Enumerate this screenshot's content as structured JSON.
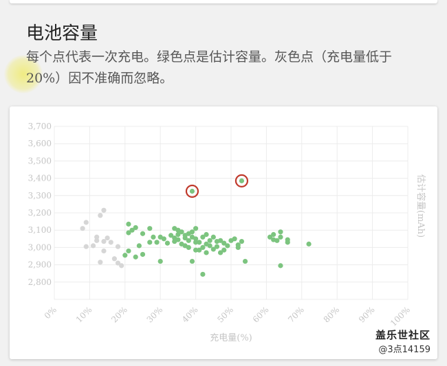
{
  "section": {
    "title": "电池容量",
    "description": "每个点代表一次充电。绿色点是估计容量。灰色点（充电量低于20%）因不准确而忽略。"
  },
  "watermark": {
    "brand": "盖乐世社区",
    "user": "@3点14159"
  },
  "colors": {
    "green": "#7cc47f",
    "gray": "#d6d6d6",
    "highlight_ring": "#c0392b",
    "axis_text": "#c4c4c4"
  },
  "chart_data": {
    "type": "scatter",
    "xlabel": "充电量(%)",
    "ylabel": "估计容量(mAh)",
    "xlim": [
      0,
      100
    ],
    "ylim": [
      2700,
      3700
    ],
    "x_ticks": [
      "0%",
      "10%",
      "20%",
      "30%",
      "40%",
      "50%",
      "60%",
      "70%",
      "80%",
      "90%",
      "100%"
    ],
    "y_ticks": [
      "2,800",
      "2,900",
      "3,000",
      "3,100",
      "3,200",
      "3,300",
      "3,400",
      "3,500",
      "3,600",
      "3,700"
    ],
    "grid": true,
    "series": [
      {
        "points": [
          [
            8,
            3110
          ],
          [
            9,
            3145
          ],
          [
            9,
            3005
          ],
          [
            12,
            3060
          ],
          [
            12,
            3040
          ],
          [
            13,
            3185
          ],
          [
            13,
            2915
          ],
          [
            14,
            3215
          ],
          [
            14,
            3035
          ],
          [
            14,
            2980
          ],
          [
            15,
            3055
          ],
          [
            17,
            2935
          ],
          [
            18,
            3005
          ],
          [
            18,
            2910
          ],
          [
            19,
            2895
          ],
          [
            16,
            3030
          ],
          [
            11,
            3010
          ]
        ]
      },
      {
        "points": [
          [
            20,
            2955
          ],
          [
            21,
            2980
          ],
          [
            21,
            3135
          ],
          [
            21,
            3085
          ],
          [
            22,
            3100
          ],
          [
            23,
            3115
          ],
          [
            23,
            2945
          ],
          [
            24,
            3010
          ],
          [
            25,
            3080
          ],
          [
            25,
            2960
          ],
          [
            27,
            3110
          ],
          [
            27,
            3030
          ],
          [
            28,
            3060
          ],
          [
            29,
            3030
          ],
          [
            30,
            3060
          ],
          [
            30,
            2920
          ],
          [
            31,
            3050
          ],
          [
            32,
            3025
          ],
          [
            33,
            3070
          ],
          [
            34,
            3055
          ],
          [
            34,
            3110
          ],
          [
            34,
            3035
          ],
          [
            35,
            3075
          ],
          [
            35,
            3045
          ],
          [
            35,
            3100
          ],
          [
            36,
            3020
          ],
          [
            36,
            3090
          ],
          [
            37,
            3055
          ],
          [
            37,
            3070
          ],
          [
            37,
            3010
          ],
          [
            38,
            3080
          ],
          [
            38,
            3040
          ],
          [
            38,
            3000
          ],
          [
            39,
            3060
          ],
          [
            39,
            2920
          ],
          [
            39,
            3090
          ],
          [
            40,
            3030
          ],
          [
            40,
            2985
          ],
          [
            40,
            3110
          ],
          [
            40,
            3050
          ],
          [
            41,
            3030
          ],
          [
            41,
            2985
          ],
          [
            42,
            3060
          ],
          [
            42,
            3000
          ],
          [
            43,
            3075
          ],
          [
            43,
            3020
          ],
          [
            43,
            2970
          ],
          [
            44,
            3040
          ],
          [
            44,
            3010
          ],
          [
            45,
            3060
          ],
          [
            45,
            2990
          ],
          [
            46,
            3035
          ],
          [
            46,
            3005
          ],
          [
            47,
            3040
          ],
          [
            47,
            2970
          ],
          [
            48,
            3025
          ],
          [
            48,
            2985
          ],
          [
            49,
            3010
          ],
          [
            50,
            3040
          ],
          [
            51,
            3050
          ],
          [
            52,
            3000
          ],
          [
            52,
            3015
          ],
          [
            53,
            3035
          ],
          [
            54,
            2920
          ],
          [
            42,
            2845
          ],
          [
            61,
            3060
          ],
          [
            62,
            3075
          ],
          [
            62,
            3045
          ],
          [
            63,
            3040
          ],
          [
            64,
            3090
          ],
          [
            64,
            3060
          ],
          [
            64,
            2895
          ],
          [
            66,
            3045
          ],
          [
            66,
            3030
          ],
          [
            72,
            3020
          ]
        ]
      }
    ],
    "highlighted": [
      [
        39,
        3325
      ],
      [
        53,
        3385
      ]
    ]
  }
}
